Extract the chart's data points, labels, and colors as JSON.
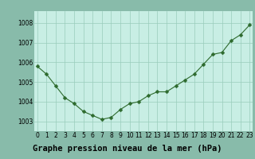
{
  "hours": [
    0,
    1,
    2,
    3,
    4,
    5,
    6,
    7,
    8,
    9,
    10,
    11,
    12,
    13,
    14,
    15,
    16,
    17,
    18,
    19,
    20,
    21,
    22,
    23
  ],
  "pressure": [
    1005.8,
    1005.4,
    1004.8,
    1004.2,
    1003.9,
    1003.5,
    1003.3,
    1003.1,
    1003.2,
    1003.6,
    1003.9,
    1004.0,
    1004.3,
    1004.5,
    1004.5,
    1004.8,
    1005.1,
    1005.4,
    1005.9,
    1006.4,
    1006.5,
    1007.1,
    1007.4,
    1007.9
  ],
  "line_color": "#2d6a2d",
  "marker_color": "#2d6a2d",
  "plot_bg": "#c8eee4",
  "grid_color": "#99ccbb",
  "bottom_bg": "#88bbaa",
  "title": "Graphe pression niveau de la mer (hPa)",
  "ylim": [
    1002.5,
    1008.6
  ],
  "yticks": [
    1003,
    1004,
    1005,
    1006,
    1007,
    1008
  ],
  "xticks": [
    0,
    1,
    2,
    3,
    4,
    5,
    6,
    7,
    8,
    9,
    10,
    11,
    12,
    13,
    14,
    15,
    16,
    17,
    18,
    19,
    20,
    21,
    22,
    23
  ],
  "tick_fontsize": 5.5,
  "title_fontsize": 7.5,
  "figure_bg": "#88bbaa"
}
